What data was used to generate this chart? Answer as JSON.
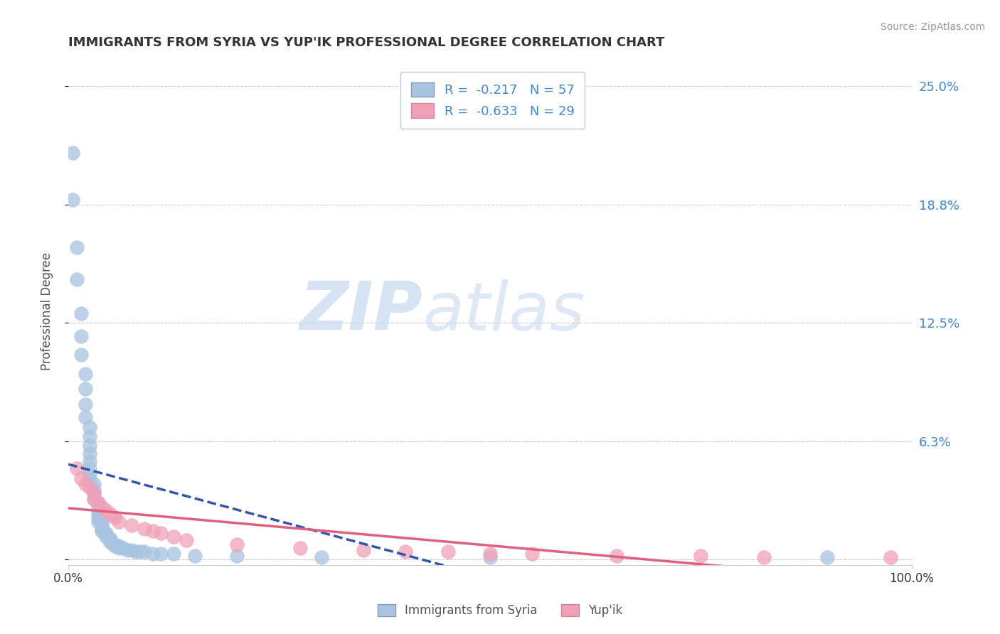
{
  "title": "IMMIGRANTS FROM SYRIA VS YUP'IK PROFESSIONAL DEGREE CORRELATION CHART",
  "source_text": "Source: ZipAtlas.com",
  "ylabel": "Professional Degree",
  "x_min": 0.0,
  "x_max": 0.2,
  "y_min": -0.003,
  "y_max": 0.265,
  "y_ticks": [
    0.0,
    0.0625,
    0.125,
    0.1875,
    0.25
  ],
  "y_tick_labels": [
    "",
    "6.3%",
    "12.5%",
    "18.8%",
    "25.0%"
  ],
  "x_tick_labels": [
    "0.0%",
    "",
    "",
    "",
    "",
    "100.0%"
  ],
  "x_ticks_positions": [
    0.0,
    0.04,
    0.08,
    0.12,
    0.16,
    0.2
  ],
  "x_tick_display": [
    "0.0%",
    "100.0%"
  ],
  "grid_color": "#cccccc",
  "background_color": "#ffffff",
  "watermark_lines": [
    "ZIP",
    "atlas"
  ],
  "watermark_colors": [
    "#c8d8ec",
    "#c8d8ec"
  ],
  "series": [
    {
      "name": "Immigrants from Syria",
      "R": -0.217,
      "N": 57,
      "color": "#a8c4e0",
      "line_color": "#3355aa",
      "line_style": "--",
      "x": [
        0.001,
        0.001,
        0.002,
        0.002,
        0.003,
        0.003,
        0.003,
        0.004,
        0.004,
        0.004,
        0.004,
        0.005,
        0.005,
        0.005,
        0.005,
        0.005,
        0.005,
        0.005,
        0.005,
        0.006,
        0.006,
        0.006,
        0.006,
        0.007,
        0.007,
        0.007,
        0.007,
        0.007,
        0.007,
        0.008,
        0.008,
        0.008,
        0.008,
        0.009,
        0.009,
        0.009,
        0.01,
        0.01,
        0.01,
        0.011,
        0.011,
        0.012,
        0.012,
        0.013,
        0.014,
        0.015,
        0.016,
        0.017,
        0.018,
        0.02,
        0.022,
        0.025,
        0.03,
        0.04,
        0.06,
        0.1,
        0.18
      ],
      "y": [
        0.215,
        0.19,
        0.165,
        0.148,
        0.13,
        0.118,
        0.108,
        0.098,
        0.09,
        0.082,
        0.075,
        0.07,
        0.065,
        0.06,
        0.056,
        0.052,
        0.048,
        0.045,
        0.042,
        0.04,
        0.037,
        0.035,
        0.032,
        0.03,
        0.028,
        0.026,
        0.024,
        0.022,
        0.02,
        0.019,
        0.018,
        0.016,
        0.015,
        0.014,
        0.013,
        0.012,
        0.011,
        0.01,
        0.009,
        0.008,
        0.007,
        0.007,
        0.006,
        0.006,
        0.005,
        0.005,
        0.004,
        0.004,
        0.004,
        0.003,
        0.003,
        0.003,
        0.002,
        0.002,
        0.001,
        0.001,
        0.001
      ]
    },
    {
      "name": "Yup'ik",
      "R": -0.633,
      "N": 29,
      "color": "#f0a0b8",
      "line_color": "#e06080",
      "line_style": "-",
      "x": [
        0.002,
        0.003,
        0.004,
        0.005,
        0.006,
        0.006,
        0.007,
        0.008,
        0.009,
        0.01,
        0.011,
        0.012,
        0.015,
        0.018,
        0.02,
        0.022,
        0.025,
        0.028,
        0.04,
        0.055,
        0.07,
        0.08,
        0.09,
        0.1,
        0.11,
        0.13,
        0.15,
        0.165,
        0.195
      ],
      "y": [
        0.048,
        0.043,
        0.04,
        0.038,
        0.035,
        0.032,
        0.03,
        0.028,
        0.026,
        0.024,
        0.022,
        0.02,
        0.018,
        0.016,
        0.015,
        0.014,
        0.012,
        0.01,
        0.008,
        0.006,
        0.005,
        0.004,
        0.004,
        0.003,
        0.003,
        0.002,
        0.002,
        0.001,
        0.001
      ]
    }
  ]
}
